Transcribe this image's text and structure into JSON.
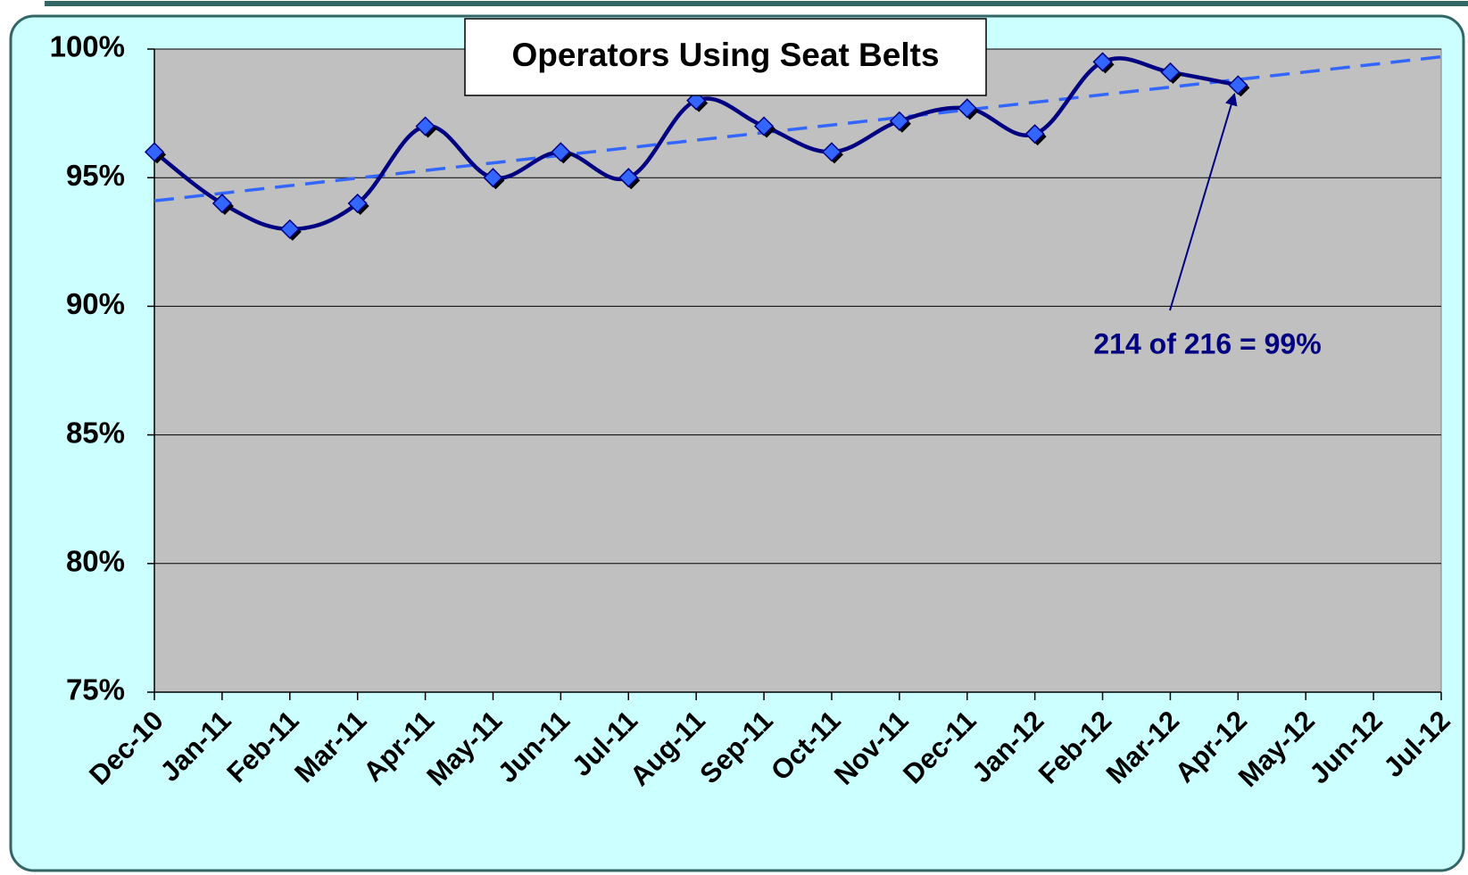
{
  "chart_data": {
    "type": "line",
    "title": "Operators Using Seat Belts",
    "categories": [
      "Dec-10",
      "Jan-11",
      "Feb-11",
      "Mar-11",
      "Apr-11",
      "May-11",
      "Jun-11",
      "Jul-11",
      "Aug-11",
      "Sep-11",
      "Oct-11",
      "Nov-11",
      "Dec-11",
      "Jan-12",
      "Feb-12",
      "Mar-12",
      "Apr-12",
      "May-12",
      "Jun-12",
      "Jul-12"
    ],
    "series": [
      {
        "color": "#000080",
        "values": [
          96,
          94,
          93,
          94,
          97,
          95,
          96,
          95,
          98,
          97,
          96,
          97.2,
          97.7,
          96.7,
          99.5,
          99.1,
          98.6,
          null,
          null,
          null
        ]
      }
    ],
    "trendline": {
      "color": "#3366ff",
      "start": 94.1,
      "end": 99.7
    },
    "annotation": {
      "text": "214 of 216 = 99%",
      "category_index": 16
    },
    "ylim": [
      75,
      100
    ],
    "yticks": [
      {
        "value": 75,
        "label": "75%"
      },
      {
        "value": 80,
        "label": "80%"
      },
      {
        "value": 85,
        "label": "85%"
      },
      {
        "value": 90,
        "label": "90%"
      },
      {
        "value": 95,
        "label": "95%"
      },
      {
        "value": 100,
        "label": "100%"
      }
    ],
    "grid": true
  }
}
